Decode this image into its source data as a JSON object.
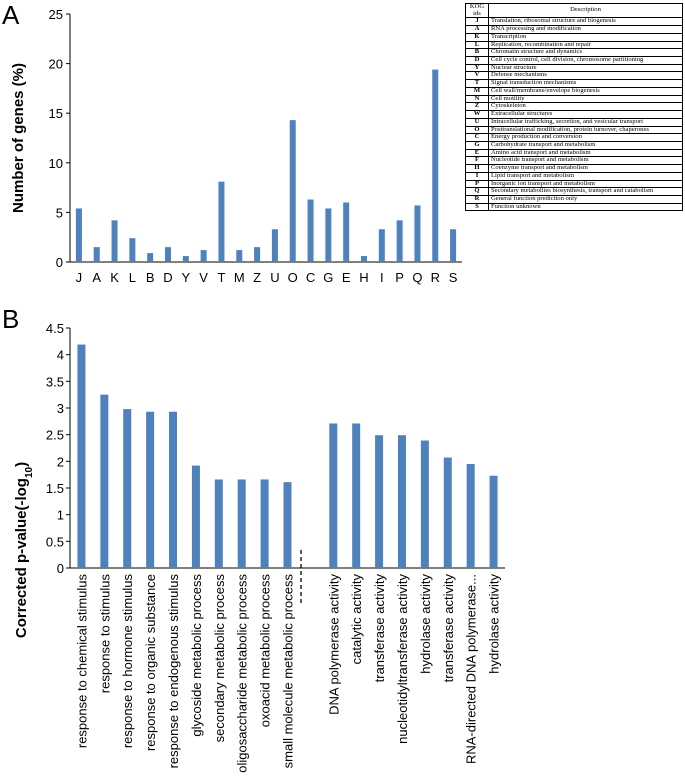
{
  "panels": {
    "a_label": "A",
    "b_label": "B"
  },
  "chart_data": [
    {
      "type": "bar",
      "title": "",
      "xlabel": "",
      "ylabel": "Number of genes (%)",
      "ylim": [
        0,
        25
      ],
      "yticks": [
        0,
        5,
        10,
        15,
        20,
        25
      ],
      "categories": [
        "J",
        "A",
        "K",
        "L",
        "B",
        "D",
        "Y",
        "V",
        "T",
        "M",
        "Z",
        "U",
        "O",
        "C",
        "G",
        "E",
        "H",
        "I",
        "P",
        "Q",
        "R",
        "S"
      ],
      "values": [
        5.4,
        1.5,
        4.2,
        2.4,
        0.9,
        1.5,
        0.6,
        1.2,
        8.1,
        1.2,
        1.5,
        3.3,
        14.3,
        6.3,
        5.4,
        6.0,
        0.6,
        3.3,
        4.2,
        5.7,
        19.4,
        3.3
      ]
    },
    {
      "type": "bar",
      "title": "",
      "xlabel": "",
      "ylabel_main": "Corrected p-value(-log",
      "ylabel_sub": "10",
      "ylabel_close": ")",
      "ylim": [
        0,
        4.5
      ],
      "yticks": [
        "0",
        "0.5",
        "1",
        "1.5",
        "2",
        "2.5",
        "3",
        "3.5",
        "4",
        "4.5"
      ],
      "categories": [
        "response to chemical stimulus",
        "response to stimulus",
        "response to hormone stimulus",
        "response to organic substance",
        "response to endogenous stimulus",
        "glycoside metabolic process",
        "secondary metabolic process",
        "oligosaccharide metabolic process",
        "oxoacid metabolic process",
        "small molecule metabolic process",
        "DNA polymerase activity",
        "catalytic activity",
        "transferase activity",
        "nucleotidyltransferase activity",
        "hydrolase activity",
        "transferase activity",
        "RNA-directed DNA polymerase...",
        "hydrolase activity"
      ],
      "values": [
        4.19,
        3.25,
        2.98,
        2.93,
        2.93,
        1.92,
        1.66,
        1.66,
        1.66,
        1.61,
        2.71,
        2.71,
        2.49,
        2.49,
        2.39,
        2.07,
        1.95,
        1.73
      ]
    }
  ],
  "kog_table": {
    "header_ids": "KOG ids",
    "header_desc": "Description",
    "rows": [
      {
        "id": "J",
        "desc": "Translation, ribosomal structure and biogenesis"
      },
      {
        "id": "A",
        "desc": "RNA processing and modification"
      },
      {
        "id": "K",
        "desc": "Transcription"
      },
      {
        "id": "L",
        "desc": "Replication, recombination and repair"
      },
      {
        "id": "B",
        "desc": "Chromatin structure and dynamics"
      },
      {
        "id": "D",
        "desc": "Cell cycle control, cell division, chromosome partitioning"
      },
      {
        "id": "Y",
        "desc": "Nuclear structure"
      },
      {
        "id": "V",
        "desc": "Defense mechanisms"
      },
      {
        "id": "T",
        "desc": "Signal transduction mechanisms"
      },
      {
        "id": "M",
        "desc": "Cell wall/membrane/envelope biogenesis"
      },
      {
        "id": "N",
        "desc": "Cell motility"
      },
      {
        "id": "Z",
        "desc": "Cytoskeleton"
      },
      {
        "id": "W",
        "desc": "Extracellular structures"
      },
      {
        "id": "U",
        "desc": "Intracellular trafficking, secretion, and vesicular transport"
      },
      {
        "id": "O",
        "desc": "Posttranslational modification, protein turnover, chaperones"
      },
      {
        "id": "C",
        "desc": "Energy production and conversion"
      },
      {
        "id": "G",
        "desc": "Carbohydrate transport and metabolism"
      },
      {
        "id": "E",
        "desc": "Amino acid transport and metabolism"
      },
      {
        "id": "F",
        "desc": "Nucleotide transport and metabolism"
      },
      {
        "id": "H",
        "desc": "Coenzyme transport and metabolism"
      },
      {
        "id": "I",
        "desc": "Lipid transport and metabolism"
      },
      {
        "id": "P",
        "desc": "Inorganic ion transport and metabolism"
      },
      {
        "id": "Q",
        "desc": "Secondary metabolites biosynthesis, transport and catabolism"
      },
      {
        "id": "R",
        "desc": "General function prediction only"
      },
      {
        "id": "S",
        "desc": "Function unknown"
      }
    ]
  },
  "colors": {
    "bar": "#4f81bd",
    "axis": "#000000"
  }
}
